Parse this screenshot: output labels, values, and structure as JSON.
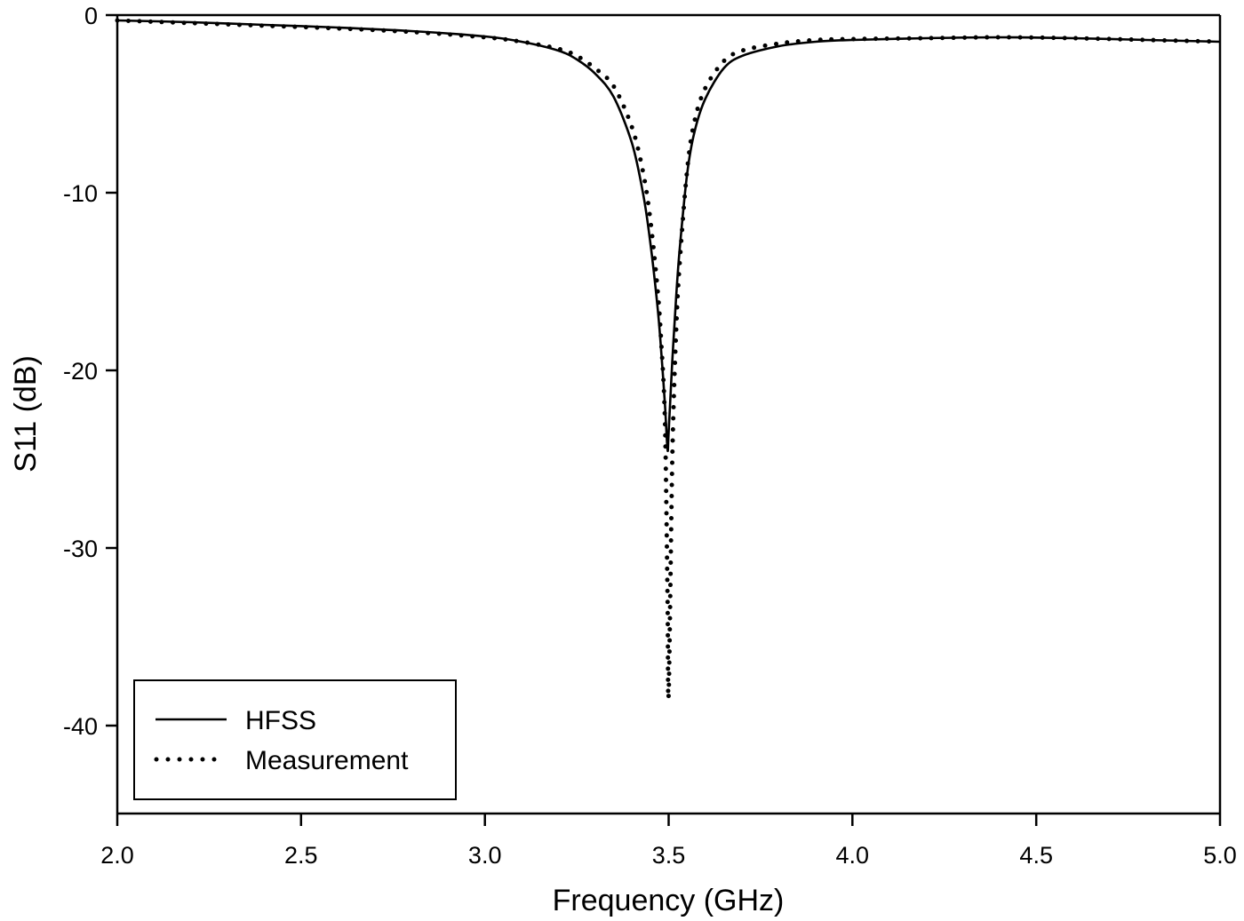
{
  "chart_data": {
    "type": "line",
    "title": "",
    "xlabel": "Frequency (GHz)",
    "ylabel": "S11 (dB)",
    "xlim": [
      2.0,
      5.0
    ],
    "ylim": [
      -45,
      0
    ],
    "xticks": [
      "2.0",
      "2.5",
      "3.0",
      "3.5",
      "4.0",
      "4.5",
      "5.0"
    ],
    "yticks": [
      "0",
      "-10",
      "-20",
      "-30",
      "-40"
    ],
    "grid": false,
    "legend_position": "lower left",
    "x": [
      2.0,
      2.2,
      2.4,
      2.6,
      2.8,
      3.0,
      3.1,
      3.2,
      3.25,
      3.3,
      3.35,
      3.4,
      3.43,
      3.45,
      3.47,
      3.48,
      3.49,
      3.497,
      3.5,
      3.51,
      3.52,
      3.53,
      3.55,
      3.57,
      3.6,
      3.65,
      3.7,
      3.8,
      3.9,
      4.0,
      4.2,
      4.4,
      4.6,
      4.8,
      5.0
    ],
    "series": [
      {
        "name": "HFSS",
        "style": "solid",
        "values": [
          -0.3,
          -0.4,
          -0.55,
          -0.7,
          -0.9,
          -1.2,
          -1.5,
          -2.0,
          -2.5,
          -3.3,
          -4.6,
          -7.2,
          -10.0,
          -12.8,
          -16.5,
          -19.0,
          -22.0,
          -24.5,
          -23.5,
          -19.5,
          -16.0,
          -13.2,
          -9.0,
          -6.6,
          -4.7,
          -3.0,
          -2.3,
          -1.75,
          -1.5,
          -1.4,
          -1.3,
          -1.25,
          -1.3,
          -1.4,
          -1.5
        ]
      },
      {
        "name": "Measurement",
        "style": "dotted",
        "values": [
          -0.3,
          -0.45,
          -0.6,
          -0.75,
          -0.95,
          -1.25,
          -1.5,
          -1.9,
          -2.3,
          -3.0,
          -4.0,
          -6.3,
          -8.8,
          -11.5,
          -15.5,
          -18.5,
          -23.0,
          -33.0,
          -38.3,
          -25.0,
          -18.0,
          -14.0,
          -8.8,
          -6.0,
          -4.1,
          -2.6,
          -2.0,
          -1.6,
          -1.4,
          -1.35,
          -1.3,
          -1.25,
          -1.3,
          -1.4,
          -1.5
        ]
      }
    ]
  },
  "legend": {
    "items": [
      {
        "label": "HFSS",
        "style": "solid"
      },
      {
        "label": "Measurement",
        "style": "dotted"
      }
    ]
  },
  "axes": {
    "x_title": "Frequency (GHz)",
    "y_title": "S11 (dB)",
    "x_tick_labels": [
      "2.0",
      "2.5",
      "3.0",
      "3.5",
      "4.0",
      "4.5",
      "5.0"
    ],
    "y_tick_labels": [
      "0",
      "-10",
      "-20",
      "-30",
      "-40"
    ]
  },
  "colors": {
    "line": "#000000",
    "background": "#ffffff"
  }
}
